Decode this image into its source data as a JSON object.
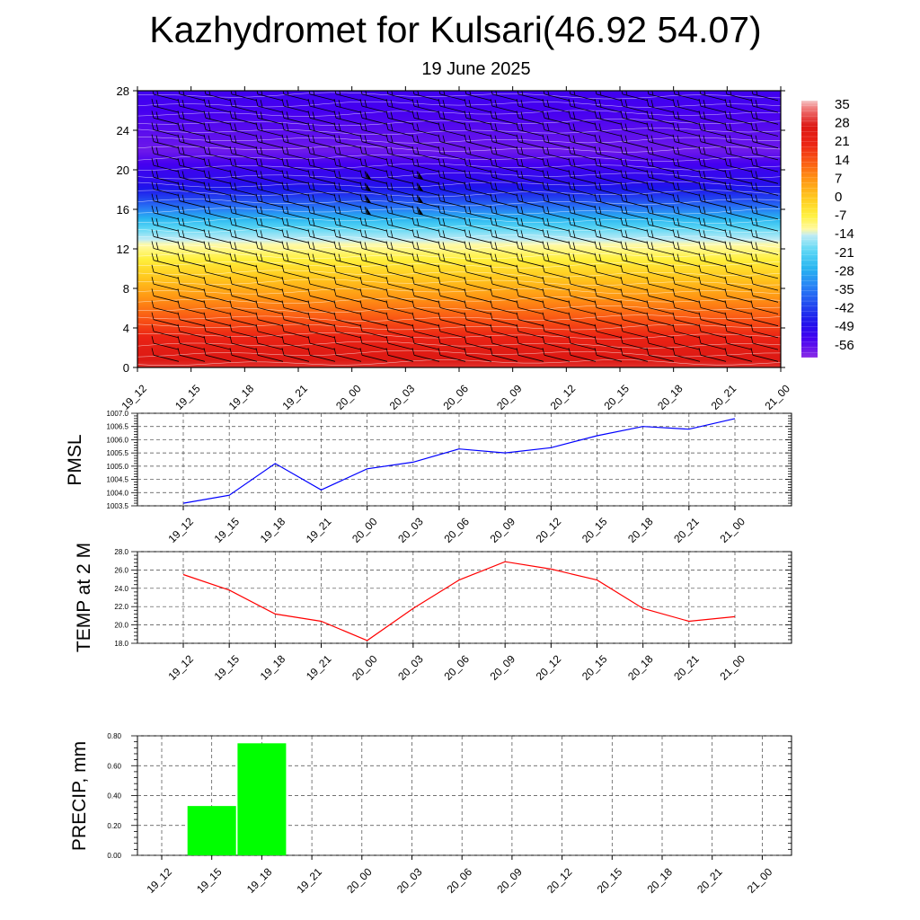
{
  "title": "Kazhydromet for Kulsari(46.92 54.07)",
  "subtitle": "19 June 2025",
  "colors": {
    "pmsl_line": "#0000ff",
    "temp_line": "#ff0000",
    "precip_bar": "#00ff00",
    "grid": "#444444",
    "contour": "#ffffff",
    "wind_barb": "#000000"
  },
  "chart_data": [
    {
      "id": "cross_section",
      "type": "heatmap",
      "x_ticks": [
        "19_12",
        "19_15",
        "19_18",
        "19_21",
        "20_00",
        "20_03",
        "20_06",
        "20_09",
        "20_12",
        "20_15",
        "20_18",
        "20_21",
        "21_00"
      ],
      "y_ticks": [
        0,
        4,
        8,
        12,
        16,
        20,
        24,
        28
      ],
      "ylim": [
        0,
        28
      ],
      "colorbar_labels": [
        "35",
        "28",
        "21",
        "14",
        "7",
        "0",
        "-7",
        "-14",
        "-21",
        "-28",
        "-35",
        "-42",
        "-49",
        "-56"
      ],
      "colorbar_range": [
        -63,
        38
      ],
      "temperature_profile": {
        "heights": [
          0,
          2,
          4,
          6,
          8,
          10,
          11,
          12,
          13,
          14,
          15,
          16,
          17,
          18,
          19,
          20,
          21,
          22,
          24,
          26,
          28
        ],
        "values": [
          30,
          25,
          18,
          11,
          4,
          -3,
          -7,
          -11,
          -15,
          -20,
          -27,
          -35,
          -42,
          -48,
          -52,
          -54,
          -57,
          -60,
          -58,
          -56,
          -55
        ]
      },
      "wind_barbs": true,
      "contours": true
    },
    {
      "id": "pmsl",
      "type": "line",
      "ylabel": "PMSL",
      "categories": [
        "19_12",
        "19_15",
        "19_18",
        "19_21",
        "20_00",
        "20_03",
        "20_06",
        "20_09",
        "20_12",
        "20_15",
        "20_18",
        "20_21",
        "21_00"
      ],
      "values": [
        1003.6,
        1003.9,
        1005.1,
        1004.1,
        1004.9,
        1005.15,
        1005.65,
        1005.5,
        1005.7,
        1006.15,
        1006.5,
        1006.4,
        1006.8
      ],
      "ylim": [
        1003.5,
        1007.0
      ],
      "y_ticks": [
        "1003.5",
        "1004.0",
        "1004.5",
        "1005.0",
        "1005.5",
        "1006.0",
        "1006.5",
        "1007.0"
      ],
      "grid": true
    },
    {
      "id": "temp",
      "type": "line",
      "ylabel": "TEMP at 2 M",
      "categories": [
        "19_12",
        "19_15",
        "19_18",
        "19_21",
        "20_00",
        "20_03",
        "20_06",
        "20_09",
        "20_12",
        "20_15",
        "20_18",
        "20_21",
        "21_00"
      ],
      "values": [
        25.5,
        23.8,
        21.2,
        20.4,
        18.3,
        21.8,
        24.9,
        26.9,
        26.1,
        24.9,
        21.8,
        20.4,
        20.9
      ],
      "ylim": [
        18.0,
        28.0
      ],
      "y_ticks": [
        "18.0",
        "20.0",
        "22.0",
        "24.0",
        "26.0",
        "28.0"
      ],
      "grid": true
    },
    {
      "id": "precip",
      "type": "bar",
      "ylabel": "PRECIP, mm",
      "categories": [
        "19_12",
        "19_15",
        "19_18",
        "19_21",
        "20_00",
        "20_03",
        "20_06",
        "20_09",
        "20_12",
        "20_15",
        "20_18",
        "20_21",
        "21_00"
      ],
      "values": [
        0,
        0.33,
        0.75,
        0,
        0,
        0,
        0,
        0,
        0,
        0,
        0,
        0,
        0
      ],
      "ylim": [
        0,
        0.8
      ],
      "y_ticks": [
        "0.00",
        "0.20",
        "0.40",
        "0.60",
        "0.80"
      ],
      "grid": true
    }
  ]
}
